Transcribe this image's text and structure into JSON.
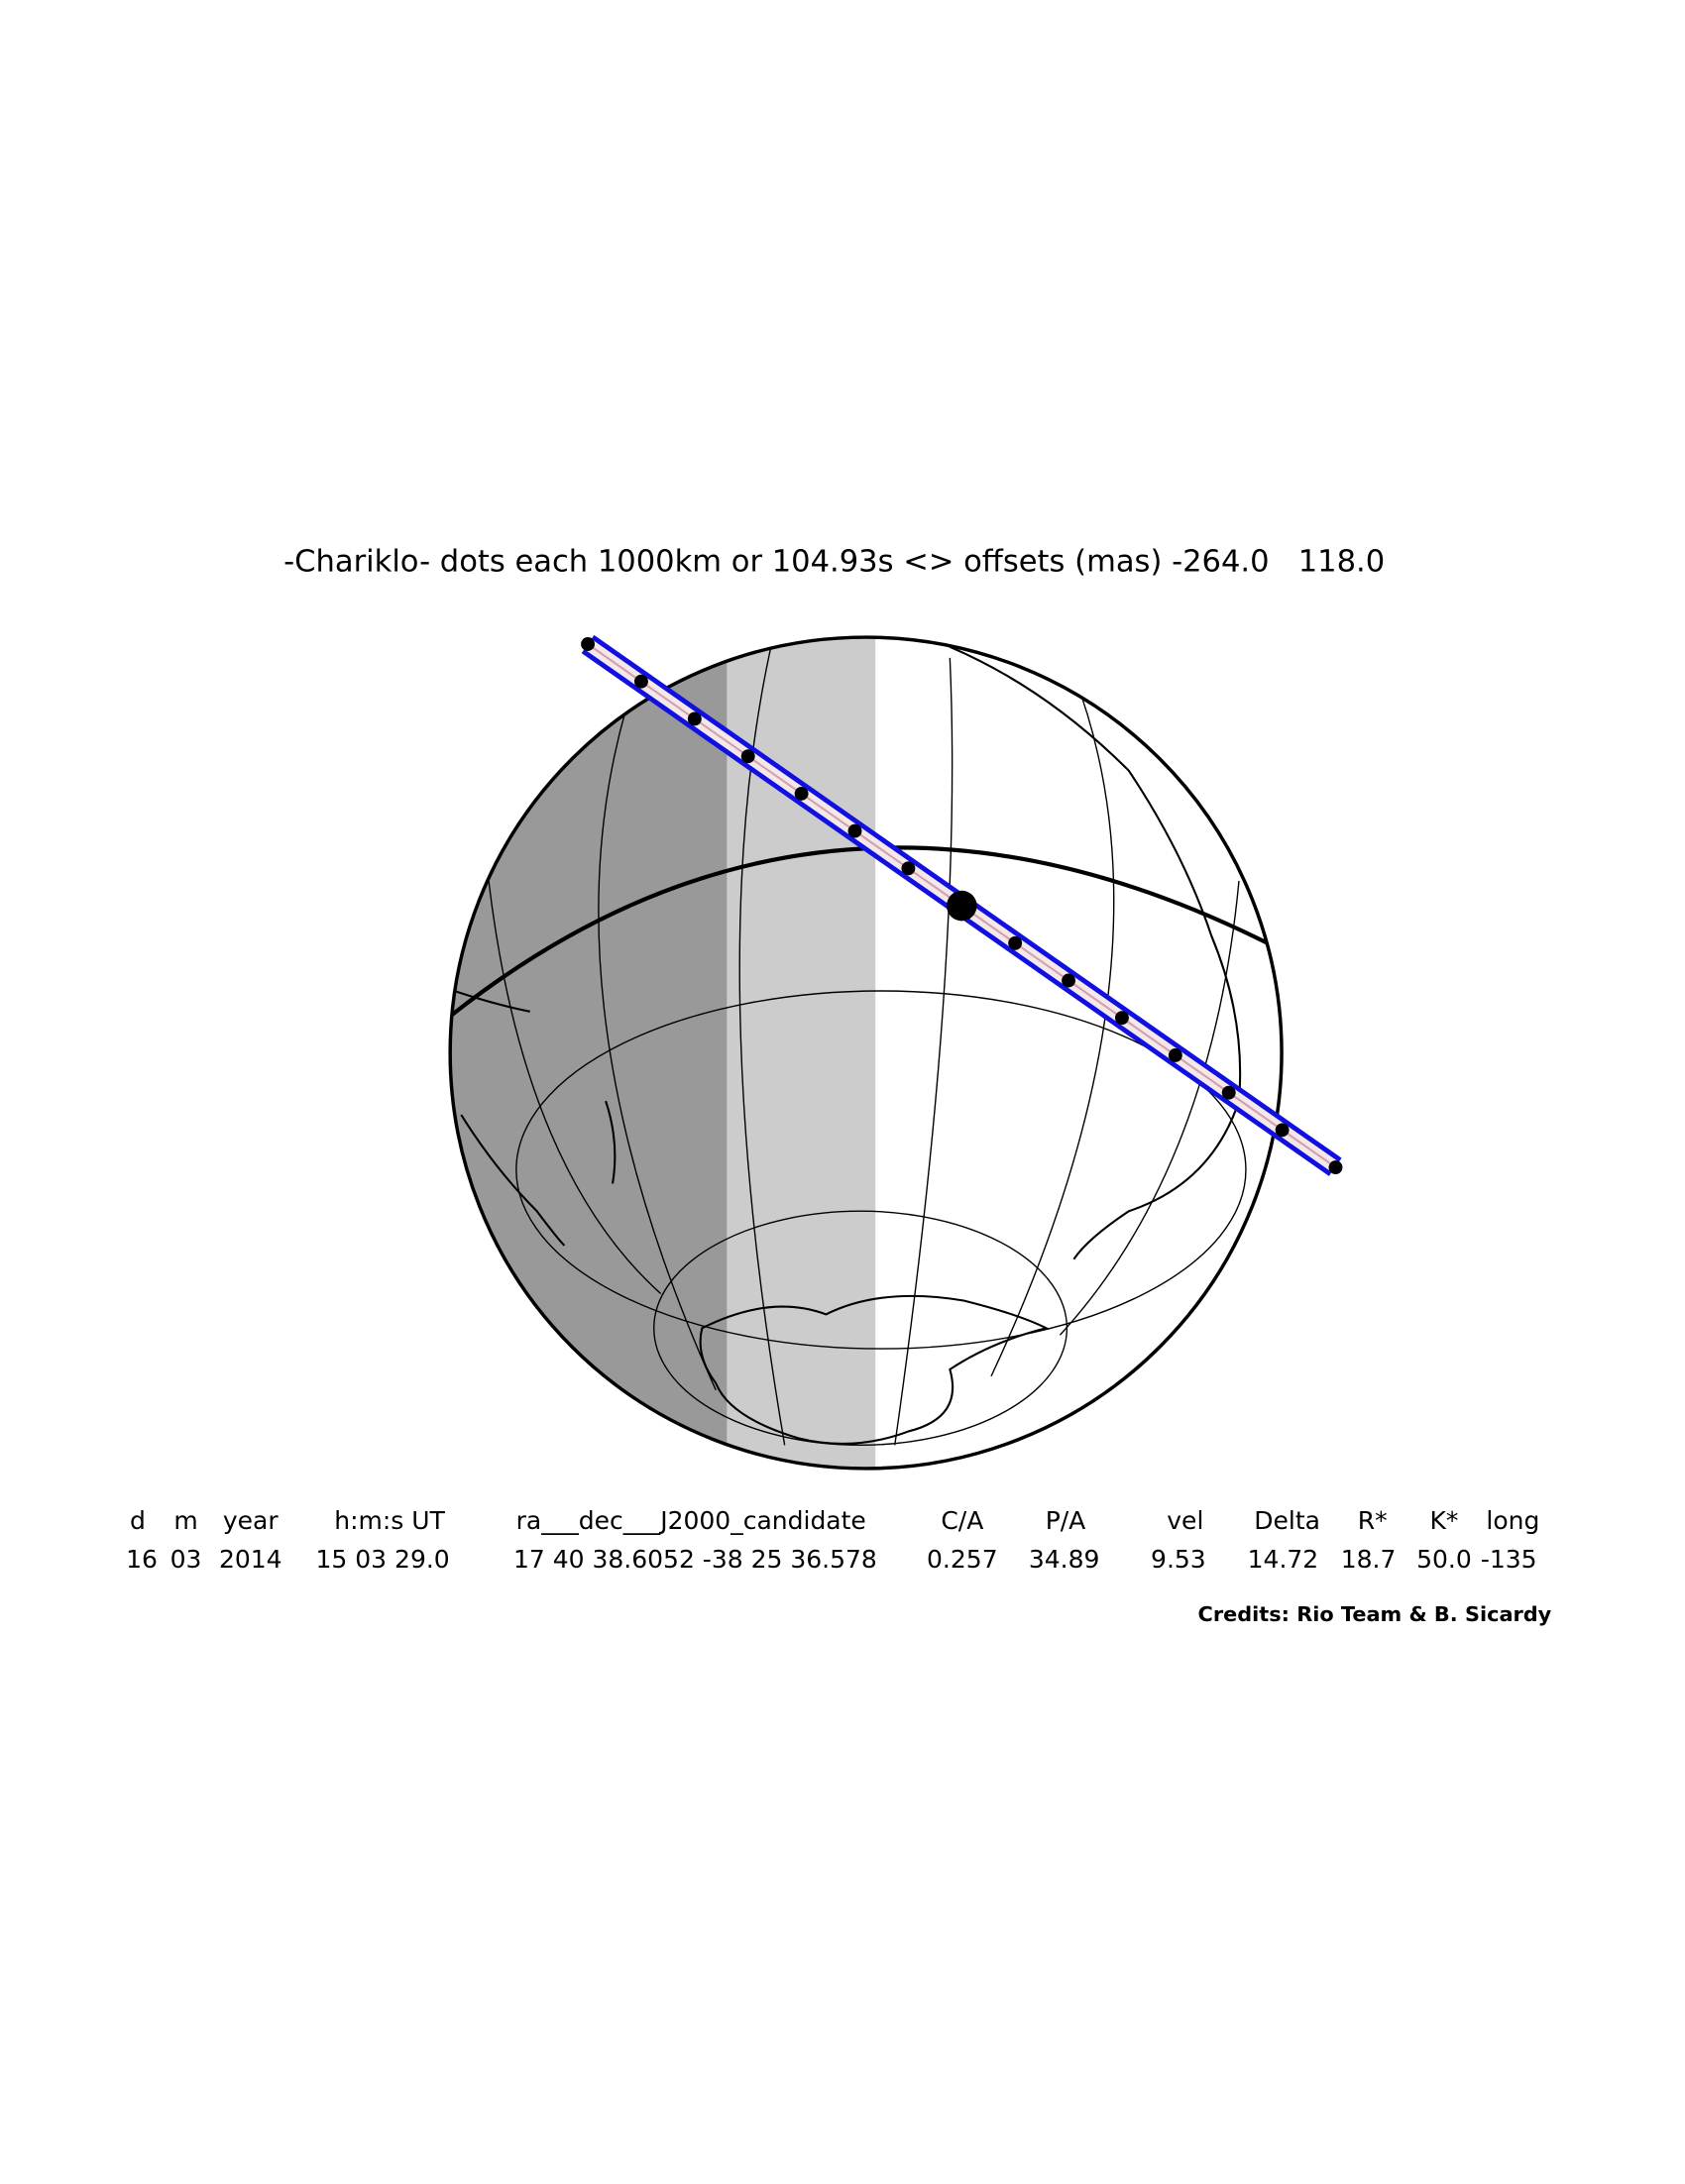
{
  "title": "-Chariklo- dots each 1000km or 104.93s <> offsets (mas) -264.0   118.0",
  "table": {
    "headers": [
      "d",
      "m",
      "year",
      "h:m:s UT",
      "ra___dec___J2000_candidate",
      "C/A",
      "P/A",
      "vel",
      "Delta",
      "R*",
      "K*",
      "long"
    ],
    "values": [
      "16",
      "03",
      "2014",
      "15 03 29.0",
      "17 40 38.6052 -38 25 36.578",
      "0.257",
      "34.89",
      "9.53",
      "14.72",
      "18.7",
      "50.0",
      "-135"
    ]
  },
  "credits": "Credits: Rio Team & B. Sicardy"
}
